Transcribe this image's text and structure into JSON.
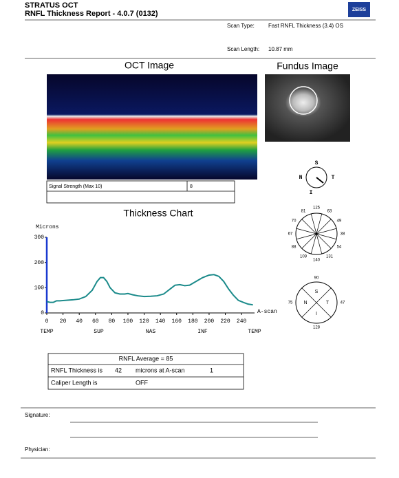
{
  "header": {
    "title": "STRATUS OCT",
    "subtitle": "RNFL Thickness Report - 4.0.7 (0132)",
    "logo": "ZEISS"
  },
  "scan_info": {
    "scan_type_label": "Scan Type:",
    "scan_type": "Fast RNFL Thickness (3.4)  OS",
    "scan_length_label": "Scan Length:",
    "scan_length": "10.87 mm"
  },
  "oct_image": {
    "title": "OCT Image",
    "signal_label": "Signal Strength (Max 10)",
    "signal_value": "8"
  },
  "fundus_image": {
    "title": "Fundus Image"
  },
  "orientation": {
    "top": "S",
    "left": "N",
    "right": "T",
    "bottom": "I"
  },
  "thickness_chart": {
    "type": "line",
    "title": "Thickness Chart",
    "y_label": "Microns",
    "x_label": "A-scan",
    "color": "#1a8a8a",
    "x": [
      0,
      4,
      8,
      12,
      16,
      24,
      32,
      40,
      48,
      56,
      62,
      66,
      70,
      74,
      78,
      84,
      90,
      96,
      100,
      106,
      112,
      120,
      128,
      136,
      144,
      152,
      158,
      164,
      170,
      176,
      184,
      192,
      200,
      206,
      212,
      218,
      224,
      230,
      236,
      242,
      248,
      254
    ],
    "values": [
      45,
      42,
      42,
      48,
      48,
      50,
      52,
      55,
      65,
      90,
      125,
      140,
      140,
      125,
      100,
      80,
      75,
      75,
      77,
      72,
      68,
      65,
      66,
      68,
      75,
      95,
      110,
      112,
      108,
      110,
      125,
      140,
      150,
      152,
      145,
      125,
      95,
      70,
      50,
      42,
      35,
      32
    ],
    "xlim": [
      0,
      256
    ],
    "ylim": [
      0,
      300
    ],
    "xticks": [
      0,
      20,
      40,
      60,
      80,
      100,
      120,
      140,
      160,
      180,
      200,
      220,
      240
    ],
    "yticks": [
      0,
      100,
      200,
      300
    ],
    "position_labels": [
      "TEMP",
      "SUP",
      "NAS",
      "INF",
      "TEMP"
    ]
  },
  "clock_hours": {
    "values": [
      125,
      63,
      49,
      38,
      54,
      131,
      140,
      109,
      88,
      67,
      70,
      81
    ]
  },
  "quadrants": {
    "labels": [
      "S",
      "T",
      "I",
      "N"
    ],
    "values": [
      90,
      47,
      128,
      75
    ]
  },
  "results_table": {
    "title": "RNFL Average = 85",
    "rows": [
      [
        "RNFL Thickness is",
        "42",
        "microns at A-scan",
        "1"
      ],
      [
        "Caliper Length is",
        "OFF"
      ]
    ]
  },
  "footer": {
    "signature": "Signature:",
    "physician": "Physician:"
  }
}
